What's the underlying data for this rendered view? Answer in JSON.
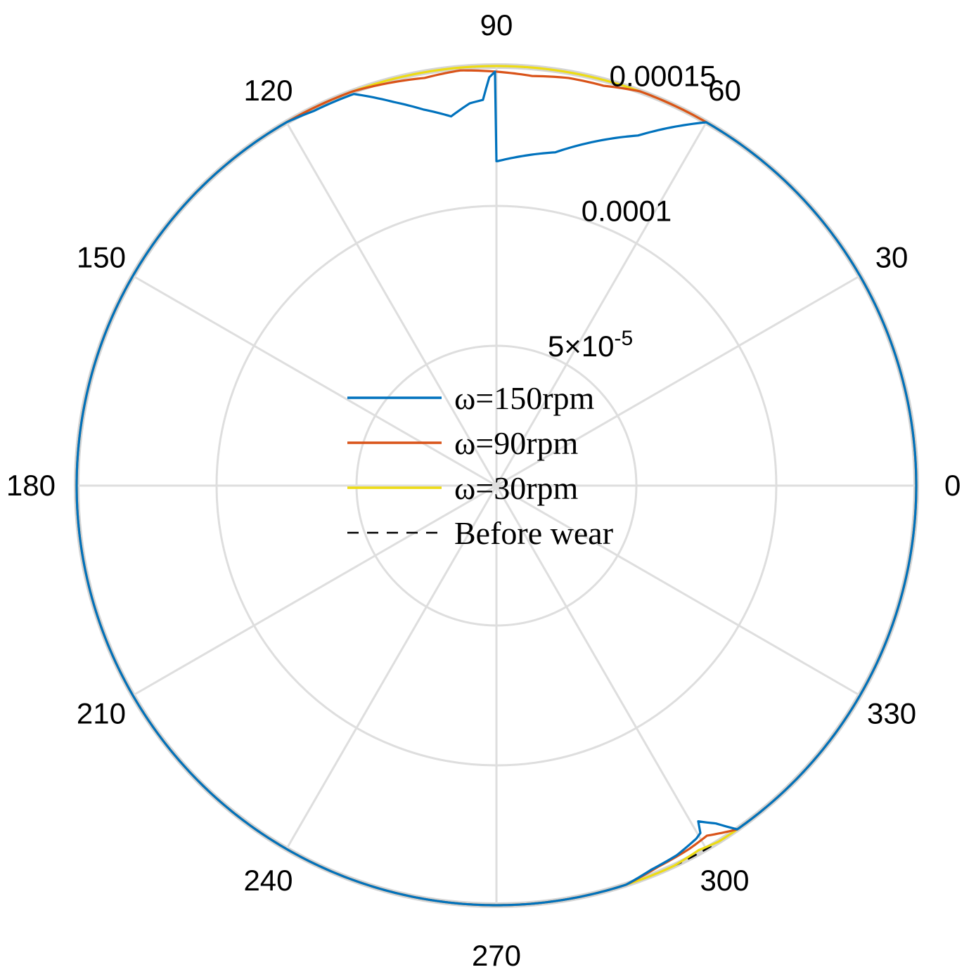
{
  "chart_data": {
    "type": "polar-line",
    "title": "",
    "angle_unit": "degrees",
    "theta_ticks": [
      "0",
      "30",
      "60",
      "90",
      "120",
      "150",
      "180",
      "210",
      "240",
      "270",
      "300",
      "330"
    ],
    "r_ticks": [
      {
        "value": 5e-05,
        "mantissa": "5×10",
        "exp": "-5"
      },
      {
        "value": 0.0001,
        "label": "0.0001"
      },
      {
        "value": 0.00015,
        "label": "0.00015"
      }
    ],
    "rlim": [
      0,
      0.00015
    ],
    "r_tick_label_angle_deg": 75,
    "grid": true,
    "legend_placement": "center",
    "series": [
      {
        "name": "ω=150rpm",
        "color": "#0072BD",
        "baseline": 0.00015,
        "dips": [
          [
            60,
            0.00015
          ],
          [
            68,
            0.000135
          ],
          [
            80,
            0.000121
          ],
          [
            89.8,
            0.000116
          ],
          [
            90,
            0.000116
          ],
          [
            90.2,
            0.000148
          ],
          [
            91,
            0.000146
          ],
          [
            92,
            0.000138
          ],
          [
            94,
            0.000137
          ],
          [
            97,
            0.000133
          ],
          [
            101,
            0.000137
          ],
          [
            105,
            0.000142
          ],
          [
            110,
            0.000149
          ],
          [
            116,
            0.000149
          ],
          [
            120,
            0.00015
          ],
          [
            288,
            0.00015
          ],
          [
            292,
            0.000148
          ],
          [
            296,
            0.000147
          ],
          [
            299.5,
            0.000145
          ],
          [
            300.4,
            0.000144
          ],
          [
            301,
            0.00014
          ],
          [
            303,
            0.000144
          ],
          [
            305,
            0.00015
          ]
        ]
      },
      {
        "name": "ω=90rpm",
        "color": "#D95319",
        "baseline": 0.00015,
        "dips": [
          [
            70,
            0.00015
          ],
          [
            75,
            0.000148
          ],
          [
            80,
            0.000148
          ],
          [
            85,
            0.000147
          ],
          [
            90,
            0.000148
          ],
          [
            95,
            0.000149
          ],
          [
            100,
            0.000148
          ],
          [
            105,
            0.000149
          ],
          [
            110,
            0.00015
          ],
          [
            288,
            0.00015
          ],
          [
            293,
            0.000148
          ],
          [
            298,
            0.000147
          ],
          [
            301,
            0.000146
          ],
          [
            303,
            0.000148
          ],
          [
            305,
            0.00015
          ]
        ]
      },
      {
        "name": "ω=30rpm",
        "color": "#EDDC14",
        "baseline": 0.00015,
        "dips": [
          [
            295,
            0.00015
          ],
          [
            299,
            0.000149
          ],
          [
            302,
            0.00015
          ]
        ]
      },
      {
        "name": "Before wear",
        "color": "#000000",
        "dash": true,
        "baseline": 0.00015,
        "dips": []
      }
    ]
  }
}
